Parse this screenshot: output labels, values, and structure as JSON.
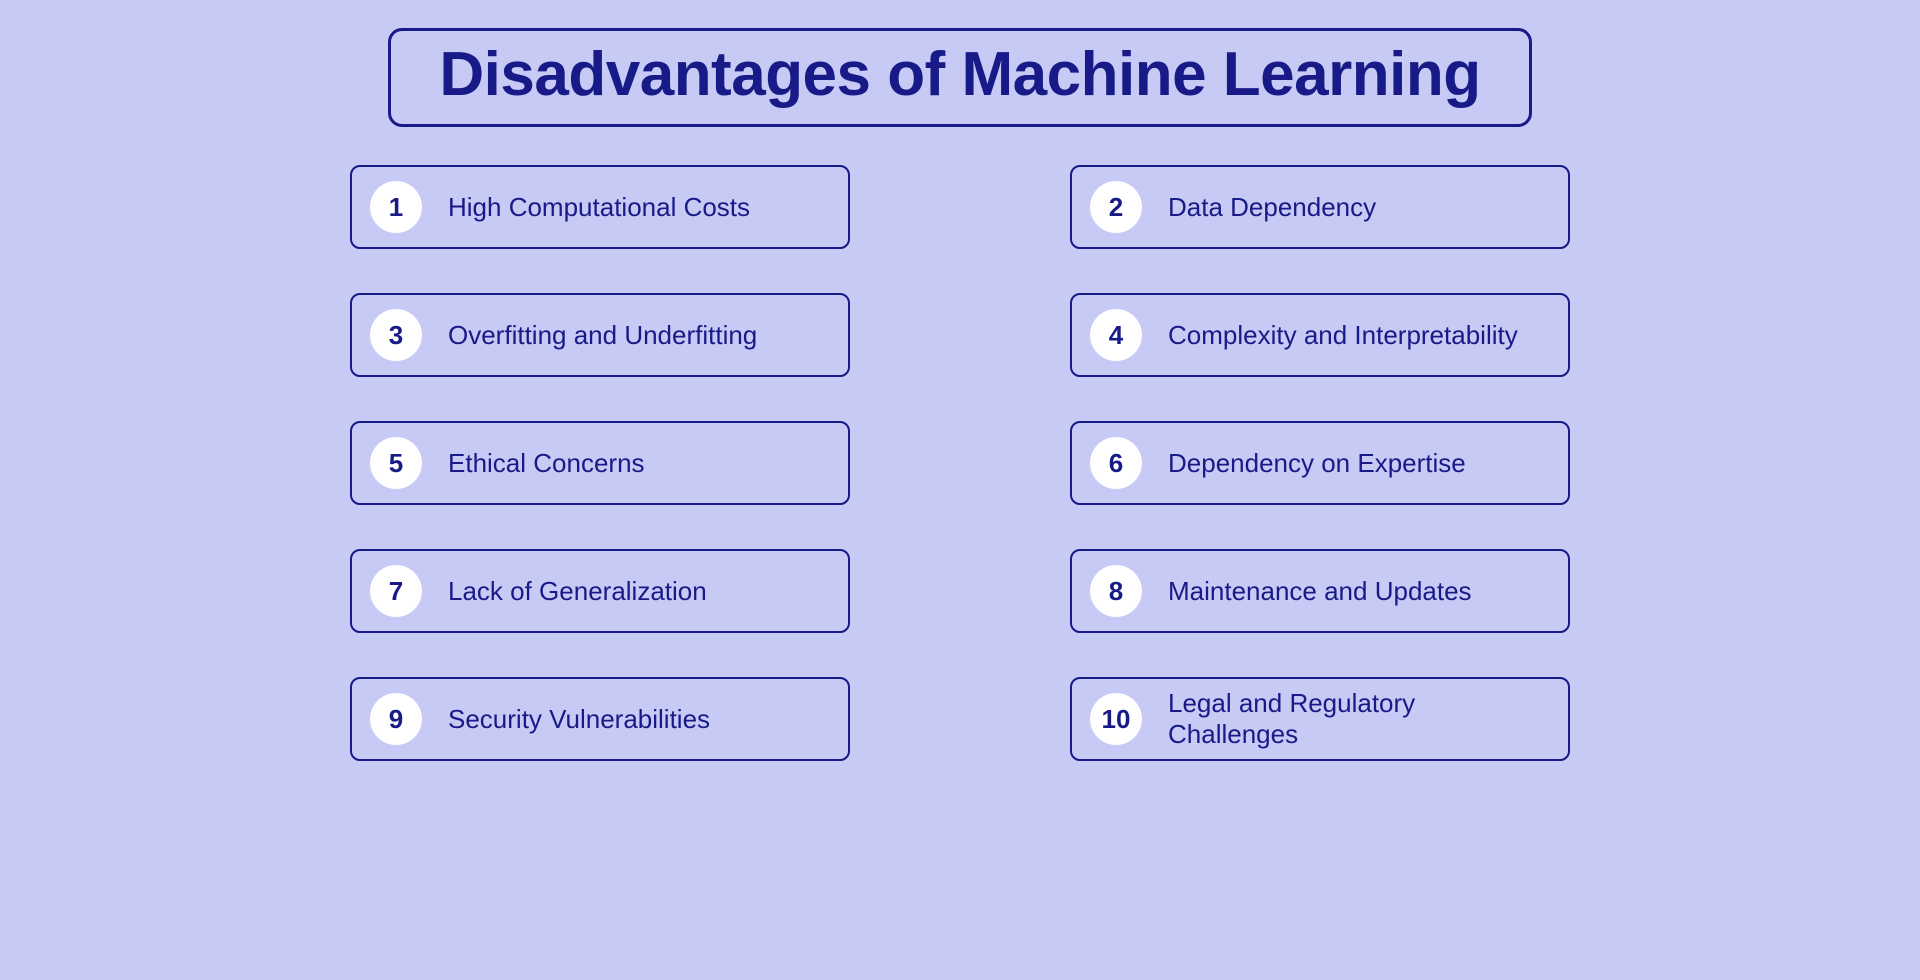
{
  "title": "Disadvantages of Machine Learning",
  "colors": {
    "background": "#c6caf5",
    "border": "#171a87",
    "text": "#171a87",
    "badge_bg": "#ffffff",
    "badge_text": "#171a87",
    "item_bg": "#c6caf5"
  },
  "layout": {
    "columns": 2,
    "rows": 5,
    "title_fontsize": 62,
    "item_fontsize": 26,
    "badge_fontsize": 26,
    "border_radius_title": 14,
    "border_radius_item": 10,
    "border_width_title": 3,
    "border_width_item": 2,
    "badge_diameter": 52
  },
  "items": [
    {
      "num": "1",
      "label": "High Computational Costs"
    },
    {
      "num": "2",
      "label": "Data Dependency"
    },
    {
      "num": "3",
      "label": "Overfitting and Underfitting"
    },
    {
      "num": "4",
      "label": "Complexity and Interpretability"
    },
    {
      "num": "5",
      "label": "Ethical Concerns"
    },
    {
      "num": "6",
      "label": "Dependency on Expertise"
    },
    {
      "num": "7",
      "label": "Lack of Generalization"
    },
    {
      "num": "8",
      "label": "Maintenance and Updates"
    },
    {
      "num": "9",
      "label": "Security Vulnerabilities"
    },
    {
      "num": "10",
      "label": "Legal and Regulatory Challenges"
    }
  ]
}
